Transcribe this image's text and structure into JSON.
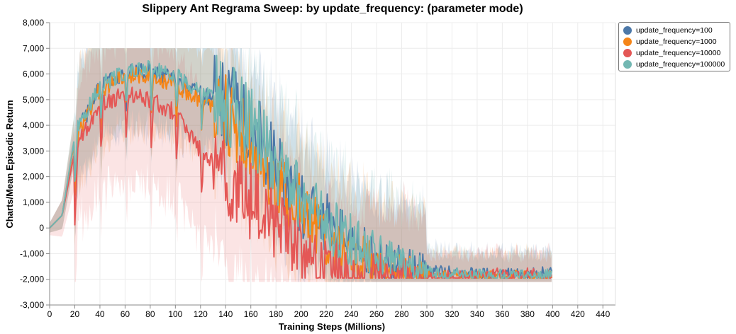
{
  "chart_data": {
    "type": "line",
    "title": "Slippery Ant Regrama Sweep: by update_frequency: (parameter mode)",
    "xlabel": "Training Steps (Millions)",
    "ylabel": "Charts/Mean Episodic Return",
    "xlim": [
      0,
      450
    ],
    "ylim": [
      -3000,
      8000
    ],
    "x_ticks": [
      "0",
      "20",
      "40",
      "60",
      "80",
      "100",
      "120",
      "140",
      "160",
      "180",
      "200",
      "220",
      "240",
      "260",
      "280",
      "300",
      "320",
      "340",
      "360",
      "380",
      "400",
      "420",
      "440"
    ],
    "y_ticks": [
      "8,000",
      "7,000",
      "6,000",
      "5,000",
      "4,000",
      "3,000",
      "2,000",
      "1,000",
      "0",
      "-1,000",
      "-2,000",
      "-3,000"
    ],
    "grid": true,
    "legend_position": "right",
    "x": [
      0,
      10,
      20,
      40,
      60,
      80,
      100,
      120,
      140,
      160,
      180,
      200,
      220,
      240,
      260,
      280,
      300,
      320,
      340,
      360,
      380,
      400
    ],
    "series": [
      {
        "name": "update_frequency=100",
        "color": "#4c78a8",
        "values": [
          0,
          500,
          3500,
          5500,
          6000,
          6100,
          5800,
          5200,
          4800,
          4200,
          2500,
          800,
          200,
          -600,
          -1200,
          -1500,
          -1700,
          -1700,
          -1800,
          -1800,
          -1800,
          -1700
        ]
      },
      {
        "name": "update_frequency=1000",
        "color": "#f58518",
        "values": [
          0,
          500,
          3500,
          5400,
          5900,
          6000,
          5600,
          5000,
          4500,
          3200,
          1500,
          800,
          -300,
          -1000,
          -1500,
          -1800,
          -1900,
          -1900,
          -1900,
          -1900,
          -1900,
          -1900
        ]
      },
      {
        "name": "update_frequency=10000",
        "color": "#e45756",
        "values": [
          0,
          500,
          3000,
          4800,
          5200,
          5000,
          4500,
          3000,
          2000,
          1000,
          200,
          -800,
          -1500,
          -1800,
          -1850,
          -1900,
          -1900,
          -1900,
          -1850,
          -1800,
          -1800,
          -1900
        ]
      },
      {
        "name": "update_frequency=100000",
        "color": "#72b7b2",
        "values": [
          0,
          500,
          3600,
          5600,
          6100,
          6200,
          5900,
          5300,
          4900,
          4000,
          2300,
          1200,
          200,
          -500,
          -1000,
          -1400,
          -1700,
          -1800,
          -1800,
          -1850,
          -1850,
          -1850
        ]
      }
    ]
  }
}
